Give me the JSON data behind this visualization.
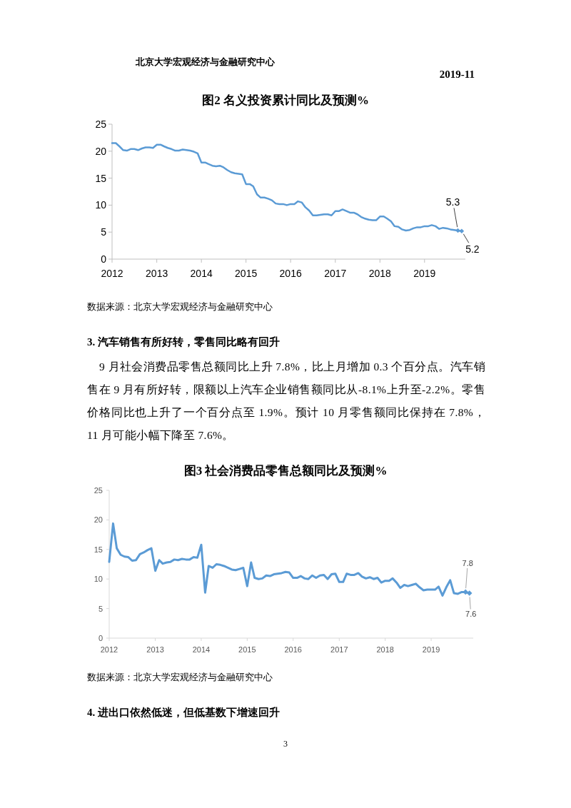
{
  "chart_data": [
    {
      "type": "line",
      "title": "图2 名义投资累计同比及预测%",
      "xlim": [
        "2012-01",
        "2019-12"
      ],
      "xticks": [
        "2012",
        "2013",
        "2014",
        "2015",
        "2016",
        "2017",
        "2018",
        "2019"
      ],
      "ylim": [
        0,
        25
      ],
      "yticks": [
        0,
        5,
        10,
        15,
        20,
        25
      ],
      "series": [
        {
          "color": "#5b9bd5",
          "marker": "none",
          "x": [
            "2012-01",
            "2012-02",
            "2012-03",
            "2012-04",
            "2012-05",
            "2012-06",
            "2012-07",
            "2012-08",
            "2012-09",
            "2012-10",
            "2012-11",
            "2012-12",
            "2013-01",
            "2013-02",
            "2013-03",
            "2013-04",
            "2013-05",
            "2013-06",
            "2013-07",
            "2013-08",
            "2013-09",
            "2013-10",
            "2013-11",
            "2013-12",
            "2014-01",
            "2014-02",
            "2014-03",
            "2014-04",
            "2014-05",
            "2014-06",
            "2014-07",
            "2014-08",
            "2014-09",
            "2014-10",
            "2014-11",
            "2014-12",
            "2015-01",
            "2015-02",
            "2015-03",
            "2015-04",
            "2015-05",
            "2015-06",
            "2015-07",
            "2015-08",
            "2015-09",
            "2015-10",
            "2015-11",
            "2015-12",
            "2016-01",
            "2016-02",
            "2016-03",
            "2016-04",
            "2016-05",
            "2016-06",
            "2016-07",
            "2016-08",
            "2016-09",
            "2016-10",
            "2016-11",
            "2016-12",
            "2017-01",
            "2017-02",
            "2017-03",
            "2017-04",
            "2017-05",
            "2017-06",
            "2017-07",
            "2017-08",
            "2017-09",
            "2017-10",
            "2017-11",
            "2017-12",
            "2018-01",
            "2018-02",
            "2018-03",
            "2018-04",
            "2018-05",
            "2018-06",
            "2018-07",
            "2018-08",
            "2018-09",
            "2018-10",
            "2018-11",
            "2018-12",
            "2019-01",
            "2019-02",
            "2019-03",
            "2019-04",
            "2019-05",
            "2019-06",
            "2019-07",
            "2019-08",
            "2019-09",
            "2019-10",
            "2019-11"
          ],
          "values": [
            21.5,
            21.5,
            20.9,
            20.2,
            20.1,
            20.4,
            20.4,
            20.2,
            20.5,
            20.7,
            20.7,
            20.6,
            21.2,
            21.2,
            20.9,
            20.6,
            20.4,
            20.1,
            20.1,
            20.3,
            20.2,
            20.1,
            19.9,
            19.6,
            17.9,
            17.9,
            17.6,
            17.3,
            17.2,
            17.3,
            17.0,
            16.5,
            16.1,
            15.9,
            15.8,
            15.7,
            13.9,
            13.9,
            13.5,
            12.0,
            11.4,
            11.4,
            11.2,
            10.9,
            10.3,
            10.2,
            10.2,
            10.0,
            10.2,
            10.2,
            10.7,
            10.5,
            9.6,
            9.0,
            8.1,
            8.1,
            8.2,
            8.3,
            8.3,
            8.1,
            8.9,
            8.9,
            9.2,
            8.9,
            8.6,
            8.6,
            8.3,
            7.8,
            7.5,
            7.3,
            7.2,
            7.2,
            7.9,
            7.9,
            7.5,
            7.0,
            6.1,
            6.0,
            5.5,
            5.3,
            5.4,
            5.7,
            5.9,
            5.9,
            6.1,
            6.1,
            6.3,
            6.1,
            5.6,
            5.8,
            5.7,
            5.5,
            5.4,
            5.3,
            5.2
          ]
        },
        {
          "type": "scatter",
          "color": "#5b9bd5",
          "marker": "diamond",
          "x": [
            "2019-10",
            "2019-11"
          ],
          "values": [
            5.3,
            5.2
          ]
        }
      ],
      "annotations": [
        "北京大学宏观经济与金融研究中心",
        "2019-11",
        {
          "text": "5.3",
          "x": "2019-10",
          "y": 5.3
        },
        {
          "text": "5.2",
          "x": "2019-11",
          "y": 5.2
        },
        "数据来源：北京大学宏观经济与金融研究中心",
        "3. 汽车销售有所好转，零售同比略有回升",
        "9 月社会消费品零售总额同比上升 7.8%，比上月增加 0.3 个百分点。汽车销售在 9 月有所好转，限额以上汽车企业销售额同比从-8.1%上升至-2.2%。零售价格同比也上升了一个百分点至 1.9%。预计 10 月零售额同比保持在 7.8%，11 月可能小幅下降至 7.6%。"
      ]
    },
    {
      "type": "line",
      "title": "图3 社会消费品零售总额同比及预测%",
      "xlim": [
        "2012-01",
        "2019-12"
      ],
      "xticks": [
        "2012",
        "2013",
        "2014",
        "2015",
        "2016",
        "2017",
        "2018",
        "2019"
      ],
      "ylim": [
        0,
        25
      ],
      "yticks": [
        0,
        5,
        10,
        15,
        20,
        25
      ],
      "series": [
        {
          "color": "#5b9bd5",
          "marker": "none",
          "x": [
            "2012-01",
            "2012-02",
            "2012-03",
            "2012-04",
            "2012-05",
            "2012-06",
            "2012-07",
            "2012-08",
            "2012-09",
            "2012-10",
            "2012-11",
            "2012-12",
            "2013-01",
            "2013-02",
            "2013-03",
            "2013-04",
            "2013-05",
            "2013-06",
            "2013-07",
            "2013-08",
            "2013-09",
            "2013-10",
            "2013-11",
            "2013-12",
            "2014-01",
            "2014-02",
            "2014-03",
            "2014-04",
            "2014-05",
            "2014-06",
            "2014-07",
            "2014-08",
            "2014-09",
            "2014-10",
            "2014-11",
            "2014-12",
            "2015-01",
            "2015-02",
            "2015-03",
            "2015-04",
            "2015-05",
            "2015-06",
            "2015-07",
            "2015-08",
            "2015-09",
            "2015-10",
            "2015-11",
            "2015-12",
            "2016-01",
            "2016-02",
            "2016-03",
            "2016-04",
            "2016-05",
            "2016-06",
            "2016-07",
            "2016-08",
            "2016-09",
            "2016-10",
            "2016-11",
            "2016-12",
            "2017-01",
            "2017-02",
            "2017-03",
            "2017-04",
            "2017-05",
            "2017-06",
            "2017-07",
            "2017-08",
            "2017-09",
            "2017-10",
            "2017-11",
            "2017-12",
            "2018-01",
            "2018-02",
            "2018-03",
            "2018-04",
            "2018-05",
            "2018-06",
            "2018-07",
            "2018-08",
            "2018-09",
            "2018-10",
            "2018-11",
            "2018-12",
            "2019-01",
            "2019-02",
            "2019-03",
            "2019-04",
            "2019-05",
            "2019-06",
            "2019-07",
            "2019-08",
            "2019-09",
            "2019-10",
            "2019-11"
          ],
          "values": [
            12.9,
            19.4,
            15.2,
            14.1,
            13.8,
            13.7,
            13.1,
            13.2,
            14.2,
            14.5,
            14.9,
            15.2,
            11.4,
            13.2,
            12.6,
            12.8,
            12.9,
            13.3,
            13.2,
            13.4,
            13.3,
            13.3,
            13.7,
            13.6,
            15.8,
            7.7,
            12.2,
            11.9,
            12.5,
            12.4,
            12.2,
            11.9,
            11.6,
            11.5,
            11.7,
            11.9,
            8.8,
            12.8,
            10.2,
            10.0,
            10.1,
            10.6,
            10.5,
            10.8,
            10.9,
            11.0,
            11.2,
            11.1,
            10.2,
            10.2,
            10.5,
            10.1,
            10.0,
            10.6,
            10.2,
            10.6,
            10.7,
            10.0,
            10.8,
            10.9,
            9.5,
            9.5,
            10.9,
            10.7,
            10.7,
            11.0,
            10.4,
            10.1,
            10.3,
            10.0,
            10.2,
            9.4,
            9.7,
            9.7,
            10.1,
            9.4,
            8.5,
            9.0,
            8.8,
            9.0,
            9.2,
            8.6,
            8.1,
            8.2,
            8.2,
            8.2,
            8.7,
            7.2,
            8.6,
            9.8,
            7.6,
            7.5,
            7.8,
            7.8,
            7.6
          ]
        },
        {
          "type": "scatter",
          "color": "#5b9bd5",
          "marker": "diamond",
          "x": [
            "2019-10",
            "2019-11"
          ],
          "values": [
            7.8,
            7.6
          ]
        }
      ],
      "annotations": [
        {
          "text": "7.8",
          "x": "2019-10",
          "y": 7.8
        },
        {
          "text": "7.6",
          "x": "2019-11",
          "y": 7.6
        },
        "数据来源：北京大学宏观经济与金融研究中心",
        "4. 进出口依然低迷，但低基数下增速回升",
        "3"
      ]
    }
  ]
}
